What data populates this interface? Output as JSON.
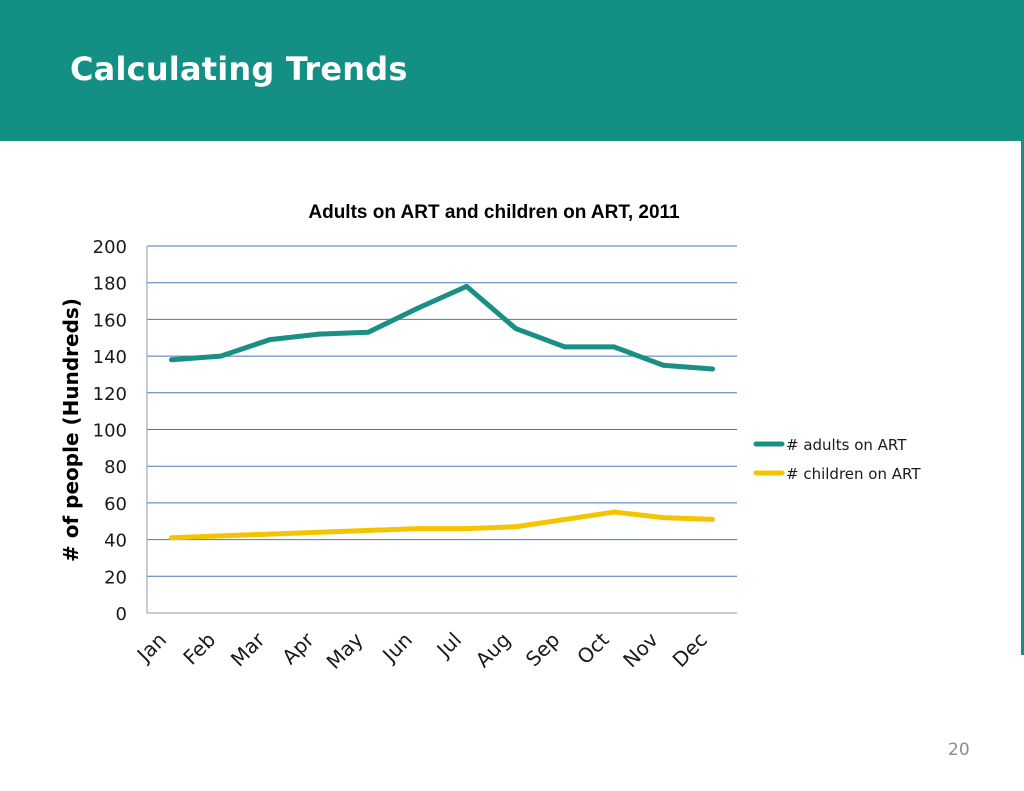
{
  "slide": {
    "title": "Calculating Trends",
    "page_number": "20",
    "header_color": "#138f84"
  },
  "chart_data": {
    "type": "line",
    "title": "Adults on ART and children on ART, 2011",
    "xlabel": "",
    "ylabel": "# of people (Hundreds)",
    "categories": [
      "Jan",
      "Feb",
      "Mar",
      "Apr",
      "May",
      "Jun",
      "Jul",
      "Aug",
      "Sep",
      "Oct",
      "Nov",
      "Dec"
    ],
    "ylim": [
      0,
      200
    ],
    "yticks": [
      0,
      20,
      40,
      60,
      80,
      100,
      120,
      140,
      160,
      180,
      200
    ],
    "grid": true,
    "legend_position": "right",
    "series": [
      {
        "name": "# adults on ART",
        "color": "#1a8f84",
        "values": [
          138,
          140,
          149,
          152,
          153,
          166,
          178,
          155,
          145,
          145,
          135,
          133
        ]
      },
      {
        "name": "# children on ART",
        "color": "#f5c400",
        "values": [
          41,
          42,
          43,
          44,
          45,
          46,
          46,
          47,
          51,
          55,
          52,
          51
        ]
      }
    ]
  }
}
